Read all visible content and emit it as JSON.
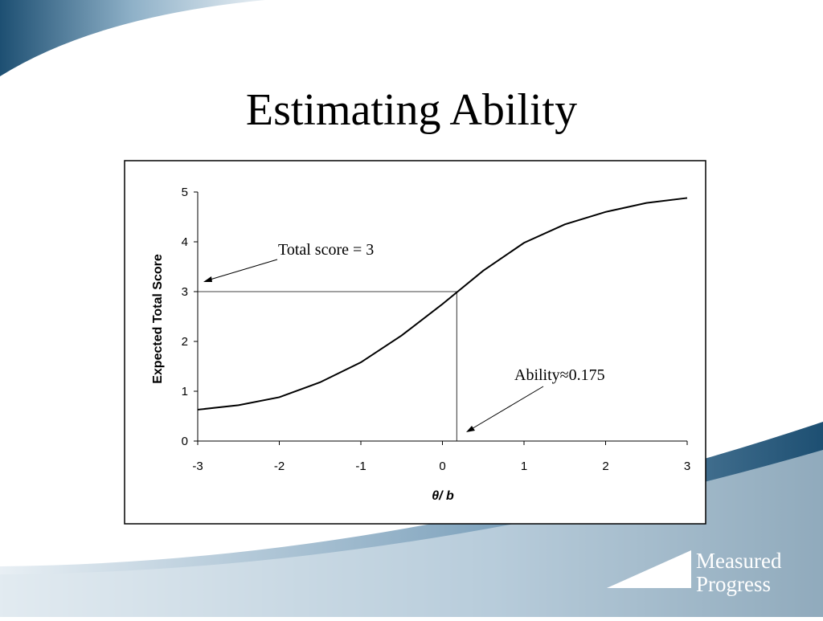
{
  "slide_title": "Estimating Ability",
  "logo": {
    "line1": "Measured",
    "line2": "Progress"
  },
  "chart_data": {
    "type": "line",
    "ylabel": "Expected Total Score",
    "xlabel": "θ/ b",
    "x": [
      -3,
      -2.5,
      -2,
      -1.5,
      -1,
      -0.5,
      0,
      0.5,
      1,
      1.5,
      2,
      2.5,
      3
    ],
    "series": [
      {
        "color": "#000000",
        "values": [
          0.63,
          0.72,
          0.88,
          1.18,
          1.58,
          2.12,
          2.75,
          3.42,
          3.98,
          4.35,
          4.6,
          4.78,
          4.88
        ]
      }
    ],
    "xlim": [
      -3,
      3
    ],
    "ylim": [
      0,
      5
    ],
    "xticks": [
      -3,
      -2,
      -1,
      0,
      1,
      2,
      3
    ],
    "yticks": [
      0,
      1,
      2,
      3,
      4,
      5
    ],
    "reference": {
      "x": 0.175,
      "y": 3
    },
    "annotations": [
      "Total score = 3",
      "Ability≈0.175"
    ]
  }
}
